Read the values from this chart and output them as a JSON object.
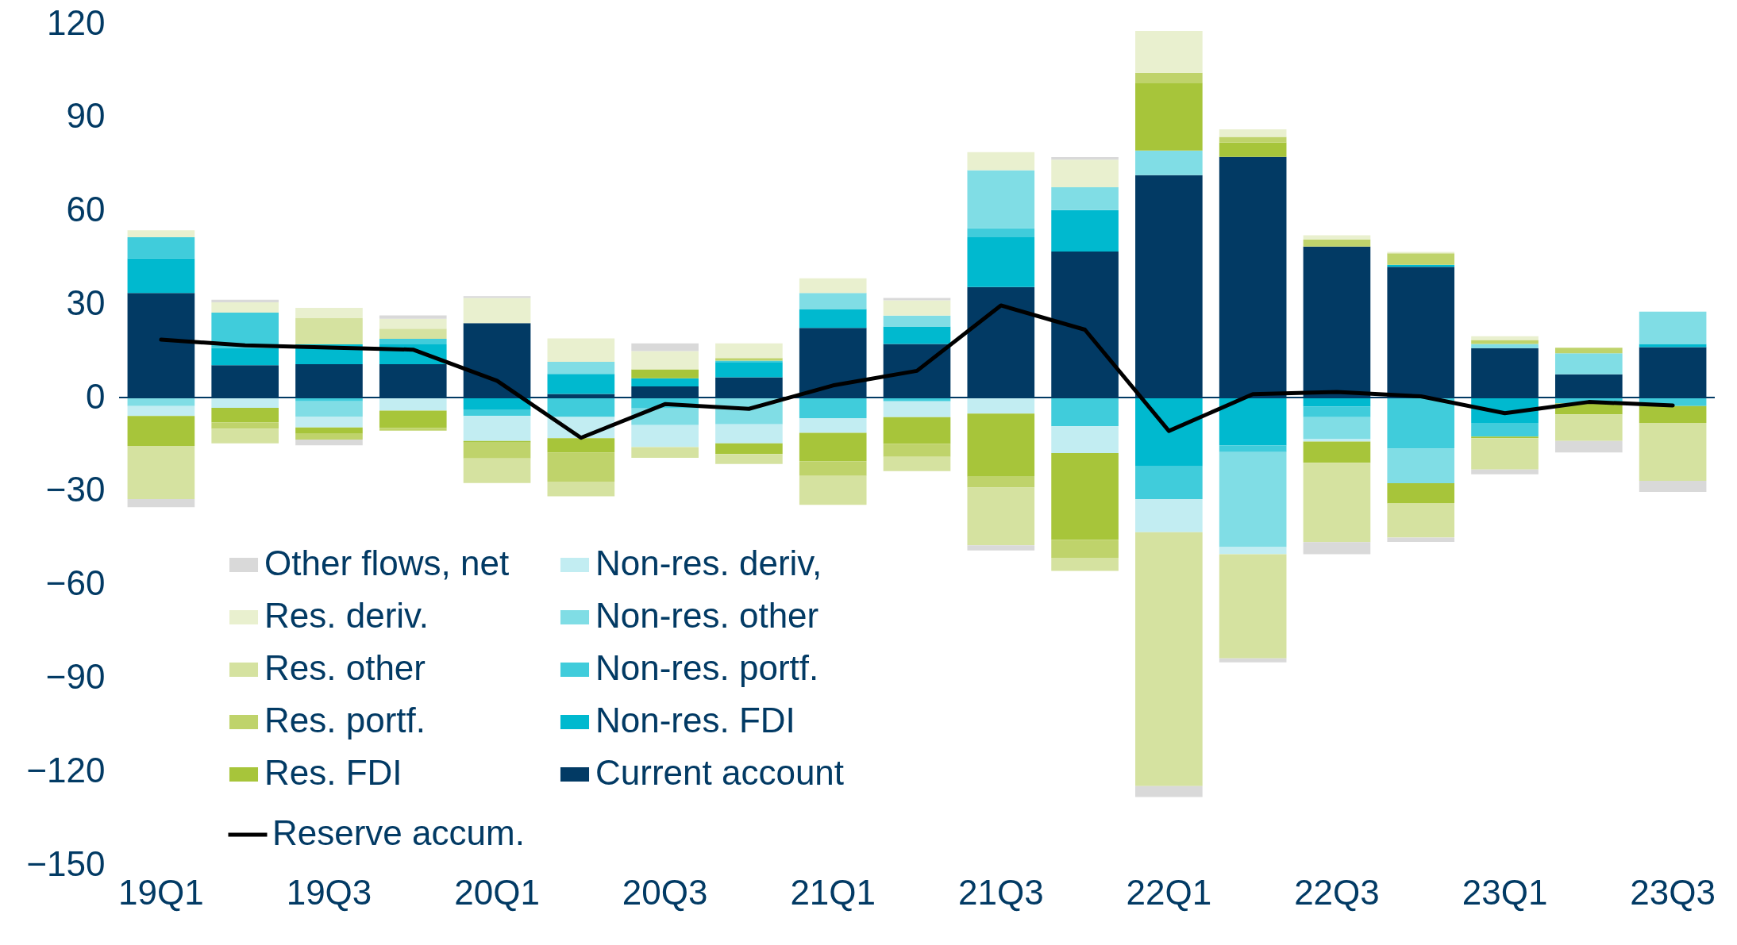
{
  "chart_data": {
    "type": "bar",
    "stacked": true,
    "categories": [
      "19Q1",
      null,
      "19Q3",
      null,
      "20Q1",
      null,
      "20Q3",
      null,
      "21Q1",
      null,
      "21Q3",
      null,
      "22Q1",
      null,
      "22Q3",
      null,
      "23Q1",
      null,
      "23Q3"
    ],
    "series": [
      {
        "name": "Current account",
        "color": "#023a64",
        "values": [
          33.6,
          10.4,
          10.7,
          10.7,
          23.9,
          1.2,
          3.6,
          6.5,
          22.4,
          17.2,
          35.5,
          46.9,
          71.4,
          77.3,
          48.5,
          42.0,
          15.9,
          7.5,
          16.2
        ]
      },
      {
        "name": "Non-res. FDI",
        "color": "#00b9cf",
        "values": [
          11.1,
          5.5,
          6.4,
          6.4,
          -3.8,
          6.4,
          2.6,
          4.9,
          6.0,
          5.6,
          16.0,
          13.3,
          -22.1,
          -15.4,
          -2.9,
          0.6,
          -8.1,
          null,
          1.0
        ]
      },
      {
        "name": "Non-res. portf.",
        "color": "#40ccdb",
        "values": [
          6.8,
          11.4,
          -1.2,
          1.8,
          -2.1,
          -6.2,
          -3.5,
          0.5,
          -6.6,
          -1.2,
          2.9,
          -9.2,
          -10.5,
          -2.1,
          -3.4,
          -16.4,
          -4.4,
          -1.9,
          -2.7
        ]
      },
      {
        "name": "Non-res. other",
        "color": "#80dde5",
        "values": [
          -2.7,
          null,
          -4.9,
          null,
          null,
          3.9,
          -5.3,
          -8.6,
          5.2,
          3.5,
          18.6,
          7.3,
          7.9,
          -30.5,
          -6.9,
          -11.1,
          1.3,
          6.7,
          10.4
        ]
      },
      {
        "name": "Non-res. deriv,",
        "color": "#c2edf2",
        "values": [
          -3.2,
          -3.3,
          -3.5,
          -4.2,
          -8.0,
          -6.8,
          -7.1,
          -6.1,
          -4.7,
          -5.1,
          -5.1,
          -8.6,
          -10.6,
          -2.3,
          -0.9,
          null,
          null,
          null,
          null
        ]
      },
      {
        "name": "Res. FDI",
        "color": "#a7c53a",
        "values": [
          -9.6,
          -4.6,
          -2.0,
          -5.5,
          -0.5,
          -4.6,
          2.9,
          -3.4,
          -9.1,
          -8.5,
          -20.3,
          -27.8,
          21.8,
          4.6,
          -6.8,
          -6.5,
          -0.5,
          -3.5,
          -5.4
        ]
      },
      {
        "name": "Res. portf.",
        "color": "#bfd36b",
        "values": [
          null,
          -2.1,
          -1.9,
          -0.9,
          -5.1,
          -9.4,
          null,
          0.8,
          -4.7,
          -4.2,
          -3.5,
          -5.8,
          3.2,
          1.8,
          2.3,
          3.7,
          1.3,
          1.8,
          null
        ]
      },
      {
        "name": "Res. other",
        "color": "#d5e2a0",
        "values": [
          -17.1,
          -4.7,
          8.4,
          3.2,
          -7.9,
          -4.7,
          -3.4,
          -3.2,
          -9.3,
          -4.6,
          -18.5,
          -4.2,
          -81.5,
          -33.4,
          -25.5,
          -10.9,
          -10.1,
          -8.5,
          -18.6
        ]
      },
      {
        "name": "Res. deriv.",
        "color": "#e9f0cf",
        "values": [
          2.2,
          3.3,
          3.3,
          3.2,
          8.1,
          7.5,
          5.8,
          4.7,
          4.7,
          4.9,
          5.8,
          8.9,
          13.4,
          2.4,
          1.3,
          0.5,
          1.2,
          null,
          null
        ]
      },
      {
        "name": "Other flows, net",
        "color": "#d9d9d9",
        "values": [
          -2.6,
          0.8,
          -1.8,
          1.1,
          0.6,
          null,
          2.5,
          null,
          null,
          0.8,
          -1.7,
          0.8,
          -3.5,
          -1.3,
          -3.9,
          -1.4,
          -1.5,
          -3.7,
          -3.6
        ]
      },
      {
        "name": "Reserve accum.",
        "type": "line",
        "color": "#000000",
        "values": [
          18.6,
          16.8,
          16.1,
          15.4,
          5.4,
          -12.9,
          -2.1,
          -3.6,
          3.9,
          8.6,
          29.6,
          21.8,
          -10.7,
          1.1,
          1.8,
          0.4,
          -5.0,
          -1.4,
          -2.5
        ]
      }
    ],
    "ylim": [
      -150,
      120
    ],
    "yticks": [
      -150,
      -120,
      -90,
      -60,
      -30,
      0,
      30,
      60,
      90,
      120
    ],
    "grid": false,
    "legend": "bottom left",
    "marker": "none",
    "line_style": "solid",
    "ref_lines": [
      {
        "axis": "y",
        "value": 0,
        "color": "#023a64"
      }
    ]
  }
}
